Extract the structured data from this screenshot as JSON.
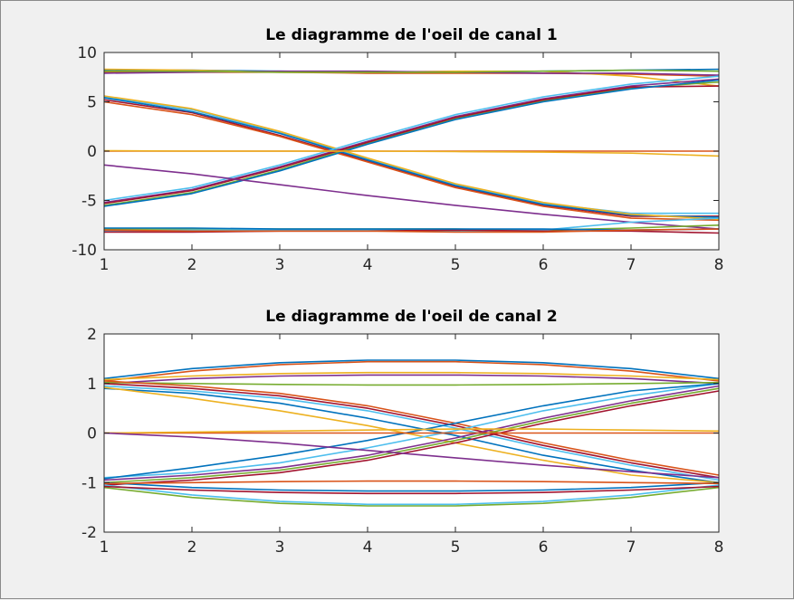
{
  "chart_data": [
    {
      "type": "line",
      "title": "Le diagramme de l'oeil de canal 1",
      "xlabel": "",
      "ylabel": "",
      "xlim": [
        1,
        8
      ],
      "ylim": [
        -10,
        10
      ],
      "x_ticks": [
        1,
        2,
        3,
        4,
        5,
        6,
        7,
        8
      ],
      "y_ticks": [
        -10,
        -5,
        0,
        5,
        10
      ],
      "grid": false,
      "x": [
        1,
        2,
        3,
        4,
        5,
        6,
        7,
        8
      ],
      "colors": [
        "#0072bd",
        "#d95319",
        "#edb120",
        "#7e2f8e",
        "#77ac30",
        "#4dbeee",
        "#a2142f"
      ],
      "series": [
        {
          "values": [
            8.2,
            8.2,
            8.1,
            8.0,
            8.0,
            8.1,
            8.2,
            8.3
          ]
        },
        {
          "values": [
            8.0,
            8.0,
            8.0,
            7.9,
            7.9,
            7.9,
            7.8,
            7.6
          ]
        },
        {
          "values": [
            8.3,
            8.2,
            8.0,
            8.0,
            8.1,
            8.1,
            7.6,
            6.6
          ]
        },
        {
          "values": [
            7.9,
            8.0,
            8.1,
            8.1,
            8.0,
            7.9,
            7.9,
            7.7
          ]
        },
        {
          "values": [
            8.1,
            8.1,
            8.0,
            8.0,
            8.0,
            8.1,
            8.2,
            8.1
          ]
        },
        {
          "values": [
            5.5,
            4.2,
            1.9,
            -0.8,
            -3.4,
            -5.3,
            -6.3,
            -6.3
          ]
        },
        {
          "values": [
            5.2,
            3.9,
            1.6,
            -1.0,
            -3.6,
            -5.5,
            -6.6,
            -6.6
          ]
        },
        {
          "values": [
            5.4,
            4.0,
            1.8,
            -0.9,
            -3.5,
            -5.4,
            -6.5,
            -6.7
          ]
        },
        {
          "values": [
            5.0,
            3.7,
            1.5,
            -1.1,
            -3.7,
            -5.6,
            -6.8,
            -7.0
          ]
        },
        {
          "values": [
            5.6,
            4.3,
            2.0,
            -0.7,
            -3.3,
            -5.2,
            -6.4,
            -6.9
          ]
        },
        {
          "values": [
            -5.2,
            -3.9,
            -1.6,
            1.0,
            3.5,
            5.3,
            6.6,
            7.3
          ]
        },
        {
          "values": [
            -5.5,
            -4.2,
            -1.9,
            0.8,
            3.3,
            5.1,
            6.4,
            7.0
          ]
        },
        {
          "values": [
            -5.0,
            -3.7,
            -1.4,
            1.2,
            3.7,
            5.5,
            6.8,
            7.6
          ]
        },
        {
          "values": [
            -5.3,
            -4.0,
            -1.7,
            0.9,
            3.4,
            5.2,
            6.5,
            6.6
          ]
        },
        {
          "values": [
            -5.6,
            -4.3,
            -2.0,
            0.7,
            3.2,
            5.0,
            6.3,
            7.2
          ]
        },
        {
          "values": [
            0.0,
            0.0,
            0.0,
            0.0,
            0.0,
            0.0,
            0.0,
            0.0
          ]
        },
        {
          "values": [
            0.05,
            0.0,
            0.0,
            0.0,
            -0.05,
            -0.1,
            -0.2,
            -0.5
          ]
        },
        {
          "values": [
            -1.4,
            -2.3,
            -3.4,
            -4.5,
            -5.5,
            -6.4,
            -7.2,
            -7.9
          ]
        },
        {
          "values": [
            -7.9,
            -7.9,
            -7.9,
            -7.9,
            -7.9,
            -8.0,
            -7.8,
            -7.5
          ]
        },
        {
          "values": [
            -8.1,
            -8.0,
            -8.0,
            -8.0,
            -8.1,
            -8.0,
            -7.2,
            -6.8
          ]
        },
        {
          "values": [
            -8.2,
            -8.2,
            -8.1,
            -8.1,
            -8.0,
            -8.1,
            -8.1,
            -8.3
          ]
        },
        {
          "values": [
            -7.8,
            -7.8,
            -7.9,
            -7.9,
            -7.9,
            -7.9,
            -8.0,
            -7.9
          ]
        },
        {
          "values": [
            -8.0,
            -8.1,
            -8.1,
            -8.1,
            -8.2,
            -8.2,
            -8.0,
            -7.9
          ]
        }
      ]
    },
    {
      "type": "line",
      "title": "Le diagramme de l'oeil de canal 2",
      "xlabel": "",
      "ylabel": "",
      "xlim": [
        1,
        8
      ],
      "ylim": [
        -2,
        2
      ],
      "x_ticks": [
        1,
        2,
        3,
        4,
        5,
        6,
        7,
        8
      ],
      "y_ticks": [
        -2,
        -1,
        0,
        1,
        2
      ],
      "grid": false,
      "x": [
        1,
        2,
        3,
        4,
        5,
        6,
        7,
        8
      ],
      "colors": [
        "#0072bd",
        "#d95319",
        "#edb120",
        "#7e2f8e",
        "#77ac30",
        "#4dbeee",
        "#a2142f"
      ],
      "series": [
        {
          "values": [
            1.1,
            1.3,
            1.42,
            1.47,
            1.47,
            1.42,
            1.3,
            1.1
          ]
        },
        {
          "values": [
            1.05,
            1.25,
            1.38,
            1.44,
            1.44,
            1.38,
            1.25,
            1.05
          ]
        },
        {
          "values": [
            1.08,
            1.15,
            1.2,
            1.22,
            1.22,
            1.2,
            1.15,
            1.08
          ]
        },
        {
          "values": [
            1.0,
            1.1,
            1.15,
            1.17,
            1.17,
            1.15,
            1.1,
            1.0
          ]
        },
        {
          "values": [
            1.02,
            1.0,
            0.98,
            0.97,
            0.97,
            0.98,
            1.0,
            1.02
          ]
        },
        {
          "values": [
            0.95,
            0.85,
            0.7,
            0.45,
            0.1,
            -0.3,
            -0.65,
            -0.95
          ]
        },
        {
          "values": [
            1.0,
            0.9,
            0.75,
            0.5,
            0.15,
            -0.25,
            -0.6,
            -0.9
          ]
        },
        {
          "values": [
            0.9,
            0.8,
            0.6,
            0.3,
            -0.05,
            -0.45,
            -0.75,
            -1.0
          ]
        },
        {
          "values": [
            1.05,
            0.95,
            0.8,
            0.55,
            0.2,
            -0.2,
            -0.55,
            -0.85
          ]
        },
        {
          "values": [
            0.92,
            0.7,
            0.45,
            0.15,
            -0.2,
            -0.55,
            -0.85,
            -1.0
          ]
        },
        {
          "values": [
            -0.95,
            -0.85,
            -0.7,
            -0.45,
            -0.1,
            0.3,
            0.65,
            0.95
          ]
        },
        {
          "values": [
            -1.0,
            -0.9,
            -0.75,
            -0.5,
            -0.15,
            0.25,
            0.6,
            0.9
          ]
        },
        {
          "values": [
            -0.9,
            -0.8,
            -0.6,
            -0.3,
            0.05,
            0.45,
            0.75,
            1.0
          ]
        },
        {
          "values": [
            -1.05,
            -0.95,
            -0.8,
            -0.55,
            -0.2,
            0.2,
            0.55,
            0.85
          ]
        },
        {
          "values": [
            -0.92,
            -0.7,
            -0.45,
            -0.15,
            0.2,
            0.55,
            0.85,
            1.0
          ]
        },
        {
          "values": [
            0.0,
            0.0,
            0.0,
            0.0,
            0.0,
            0.0,
            0.0,
            0.0
          ]
        },
        {
          "values": [
            0.0,
            0.02,
            0.04,
            0.06,
            0.08,
            0.08,
            0.06,
            0.04
          ]
        },
        {
          "values": [
            0.0,
            -0.08,
            -0.2,
            -0.35,
            -0.5,
            -0.65,
            -0.78,
            -0.9
          ]
        },
        {
          "values": [
            -1.1,
            -1.3,
            -1.42,
            -1.47,
            -1.47,
            -1.42,
            -1.3,
            -1.1
          ]
        },
        {
          "values": [
            -1.05,
            -1.25,
            -1.38,
            -1.44,
            -1.44,
            -1.38,
            -1.25,
            -1.05
          ]
        },
        {
          "values": [
            -1.08,
            -1.15,
            -1.2,
            -1.22,
            -1.22,
            -1.2,
            -1.15,
            -1.08
          ]
        },
        {
          "values": [
            -1.0,
            -1.1,
            -1.15,
            -1.17,
            -1.17,
            -1.15,
            -1.1,
            -1.0
          ]
        },
        {
          "values": [
            -1.02,
            -1.0,
            -0.98,
            -0.97,
            -0.97,
            -0.98,
            -1.0,
            -1.02
          ]
        }
      ]
    }
  ]
}
